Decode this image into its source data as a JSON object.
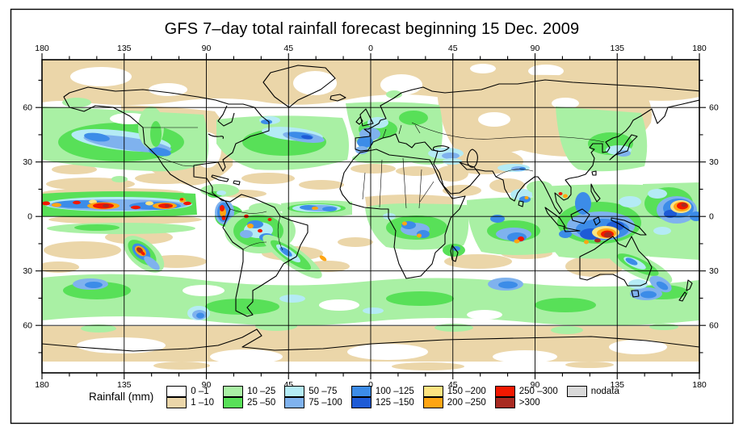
{
  "palette": {
    "rain_0_1": "#FFFFFF",
    "rain_1_10": "#EBD6A9",
    "rain_10_25": "#A9F0A4",
    "rain_25_50": "#58E058",
    "rain_50_75": "#B4EBF5",
    "rain_75_100": "#7FB2EE",
    "rain_100_125": "#3C8CE8",
    "rain_125_150": "#1E5BD6",
    "rain_150_200": "#FCE380",
    "rain_200_250": "#FFA513",
    "rain_250_300": "#F21800",
    "rain_gt_300": "#A82A21",
    "nodata": "#D9D9D9",
    "coastline": "#000000",
    "background": "#FFFFFF"
  },
  "header": {
    "title": "GFS 7–day total rainfall forecast beginning 15 Dec. 2009"
  },
  "map": {
    "top_axis_labels": [
      "180",
      "135",
      "90",
      "45",
      "0",
      "45",
      "90",
      "135",
      "180"
    ],
    "bottom_axis_labels": [
      "180",
      "135",
      "90",
      "45",
      "0",
      "45",
      "90",
      "135",
      "180"
    ],
    "left_axis_labels": [
      "60",
      "30",
      "0",
      "30",
      "60"
    ],
    "right_axis_labels": [
      "60",
      "30",
      "0",
      "30",
      "60"
    ]
  },
  "legend": {
    "title": "Rainfall (mm)",
    "columns": [
      [
        {
          "label": "0 –1",
          "palette": "rain_0_1"
        },
        {
          "label": "1 –10",
          "palette": "rain_1_10"
        }
      ],
      [
        {
          "label": "10 –25",
          "palette": "rain_10_25"
        },
        {
          "label": "25 –50",
          "palette": "rain_25_50"
        }
      ],
      [
        {
          "label": "50 –75",
          "palette": "rain_50_75"
        },
        {
          "label": "75 –100",
          "palette": "rain_75_100"
        }
      ],
      [
        {
          "label": "100 –125",
          "palette": "rain_100_125"
        },
        {
          "label": "125 –150",
          "palette": "rain_125_150"
        }
      ],
      [
        {
          "label": "150 –200",
          "palette": "rain_150_200"
        },
        {
          "label": "200 –250",
          "palette": "rain_200_250"
        }
      ],
      [
        {
          "label": "250 –300",
          "palette": "rain_250_300"
        },
        {
          "label": ">300",
          "palette": "rain_gt_300"
        }
      ]
    ],
    "nodata": {
      "label": "nodata",
      "palette": "nodata"
    }
  },
  "chart_data": {
    "type": "map",
    "title": "GFS 7–day total rainfall forecast beginning 15 Dec. 2009",
    "projection": "equirectangular",
    "lon_range": [
      -180,
      180
    ],
    "lat_range": [
      -90,
      90
    ],
    "gridline_interval_deg": {
      "lon": 45,
      "lat": 30
    },
    "colorbar_units": "mm",
    "colorbar_bins": [
      "0–1",
      "1–10",
      "10–25",
      "25–50",
      "50–75",
      "75–100",
      "100–125",
      "125–150",
      "150–200",
      "200–250",
      "250–300",
      ">300",
      "nodata"
    ],
    "visible_maxima_regions": [
      "equatorial central Pacific ITCZ near the dateline",
      "Indonesia / New Guinea maritime continent",
      "western equatorial Pacific at the right map edge",
      "Colombia / Panama coast",
      "south-central Pacific near 25S"
    ]
  }
}
